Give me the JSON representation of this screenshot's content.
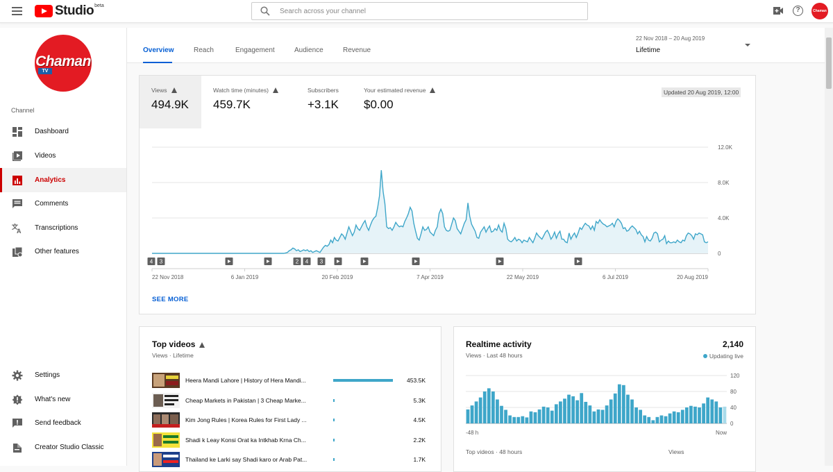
{
  "header": {
    "logo_text": "Studio",
    "logo_badge": "beta",
    "search_placeholder": "Search across your channel",
    "avatar_text": "Chaman"
  },
  "sidebar": {
    "channel_logo_text": "Chaman",
    "channel_logo_sub": "TV",
    "section_label": "Channel",
    "items": [
      {
        "label": "Dashboard",
        "icon": "dashboard-icon"
      },
      {
        "label": "Videos",
        "icon": "videos-icon"
      },
      {
        "label": "Analytics",
        "icon": "analytics-icon",
        "active": true
      },
      {
        "label": "Comments",
        "icon": "comments-icon"
      },
      {
        "label": "Transcriptions",
        "icon": "transcriptions-icon"
      },
      {
        "label": "Other features",
        "icon": "other-features-icon"
      }
    ],
    "bottom_items": [
      {
        "label": "Settings",
        "icon": "gear-icon"
      },
      {
        "label": "What's new",
        "icon": "whats-new-icon"
      },
      {
        "label": "Send feedback",
        "icon": "feedback-icon"
      },
      {
        "label": "Creator Studio Classic",
        "icon": "classic-icon"
      }
    ]
  },
  "tabs": [
    "Overview",
    "Reach",
    "Engagement",
    "Audience",
    "Revenue"
  ],
  "date_picker": {
    "range": "22 Nov 2018 – 20 Aug 2019",
    "value": "Lifetime"
  },
  "overview": {
    "metrics": [
      {
        "label": "Views",
        "value": "494.9K"
      },
      {
        "label": "Watch time (minutes)",
        "value": "459.7K"
      },
      {
        "label": "Subscribers",
        "value": "+3.1K"
      },
      {
        "label": "Your estimated revenue",
        "value": "$0.00"
      }
    ],
    "updated": "Updated 20 Aug 2019, 12:00",
    "see_more": "SEE MORE",
    "markers": [
      "4",
      "3",
      "2",
      "4",
      "3"
    ]
  },
  "chart_data": [
    {
      "type": "area",
      "title": "Views",
      "x_tick_labels": [
        "22 Nov 2018",
        "6 Jan 2019",
        "20 Feb 2019",
        "7 Apr 2019",
        "22 May 2019",
        "6 Jul 2019",
        "20 Aug 2019"
      ],
      "y_tick_labels": [
        "0",
        "4.0K",
        "8.0K",
        "12.0K"
      ],
      "ylim": [
        0,
        12000
      ],
      "series": [
        {
          "name": "Views",
          "values": [
            0,
            0,
            0,
            0,
            0,
            0,
            0,
            0,
            0,
            0,
            0,
            0,
            0,
            0,
            0,
            0,
            0,
            0,
            0,
            0,
            0,
            0,
            0,
            0,
            0,
            0,
            0,
            0,
            0,
            0,
            0,
            0,
            0,
            0,
            0,
            0,
            0,
            0,
            0,
            0,
            0,
            0,
            0,
            0,
            0,
            0,
            0,
            0,
            0,
            0,
            0,
            0,
            0,
            0,
            0,
            0,
            0,
            0,
            0,
            0,
            0,
            0,
            0,
            0,
            0,
            0,
            0,
            0,
            0,
            0,
            0,
            0,
            0,
            0,
            50,
            100,
            300,
            400,
            600,
            500,
            300,
            400,
            200,
            300,
            400,
            300,
            400,
            200,
            300,
            100,
            200,
            300,
            200,
            100,
            400,
            700,
            900,
            800,
            1000,
            1500,
            1200,
            1800,
            1500,
            1400,
            1800,
            2200,
            2000,
            1600,
            2300,
            3000,
            2500,
            2000,
            2400,
            3200,
            2800,
            2600,
            3000,
            3400,
            3700,
            3000,
            2600,
            3200,
            3700,
            4000,
            4200,
            5200,
            6500,
            9400,
            7000,
            5600,
            3000,
            2800,
            2900,
            2600,
            3000,
            3500,
            3200,
            3000,
            3100,
            3000,
            3600,
            4000,
            4500,
            5200,
            4800,
            3400,
            2500,
            1700,
            1500,
            2200,
            3000,
            2600,
            2700,
            3000,
            2400,
            2200,
            2000,
            2600,
            3000,
            4500,
            5000,
            4500,
            3000,
            2600,
            2500,
            2600,
            3300,
            4000,
            3700,
            2800,
            2500,
            2200,
            2800,
            3400,
            3800,
            5700,
            4200,
            3300,
            2900,
            2500,
            1800,
            1700,
            2400,
            2700,
            3000,
            2400,
            2800,
            3100,
            2400,
            2500,
            2800,
            2600,
            3200,
            2600,
            2400,
            3400,
            2800,
            1600,
            1400,
            1300,
            1500,
            1800,
            1400,
            1600,
            1500,
            1200,
            1500,
            1400,
            1300,
            1800,
            1500,
            1200,
            1700,
            2300,
            2000,
            1800,
            1600,
            2000,
            2400,
            2600,
            2200,
            1600,
            1900,
            2400,
            1700,
            2200,
            2500,
            1600,
            1600,
            1300,
            1200,
            2300,
            1600,
            2000,
            2300,
            1800,
            2300,
            2900,
            2700,
            3100,
            3400,
            3200,
            3100,
            2700,
            3100,
            2600,
            3600,
            3400,
            3800,
            3500,
            3300,
            3200,
            3000,
            3100,
            3200,
            3400,
            3000,
            3600,
            3900,
            3700,
            3400,
            2800,
            2900,
            2500,
            2600,
            2900,
            3100,
            2900,
            2700,
            2200,
            2500,
            2100,
            1900,
            1300,
            1900,
            1500,
            1400,
            1700,
            2300,
            2400,
            2200,
            1300,
            1500,
            1600,
            2000,
            1100,
            1400,
            1200,
            1200,
            1300,
            1200,
            1500,
            1300,
            1200,
            1500,
            1400,
            2000,
            2300,
            2200,
            2000,
            1600,
            2200,
            2100,
            2300,
            2200,
            2100,
            1300,
            1200,
            1300
          ]
        }
      ]
    },
    {
      "type": "bar",
      "title": "Realtime activity",
      "x_tick_labels": [
        "-48 h",
        "Now"
      ],
      "y_tick_labels": [
        "0",
        "40",
        "80",
        "120"
      ],
      "ylim": [
        0,
        120
      ],
      "series": [
        {
          "name": "Views",
          "values": [
            35,
            45,
            55,
            65,
            80,
            88,
            80,
            60,
            44,
            34,
            20,
            16,
            16,
            18,
            15,
            30,
            28,
            35,
            42,
            40,
            32,
            48,
            55,
            62,
            72,
            68,
            58,
            76,
            54,
            45,
            30,
            35,
            34,
            45,
            60,
            75,
            98,
            96,
            72,
            60,
            40,
            34,
            20,
            16,
            8,
            16,
            20,
            18,
            25,
            30,
            28,
            34,
            40,
            44,
            42,
            40,
            50,
            65,
            60,
            55,
            40,
            42
          ]
        }
      ]
    }
  ],
  "top_videos": {
    "title": "Top videos",
    "subtitle": "Views · Lifetime",
    "videos": [
      {
        "title": "Heera Mandi Lahore | History of Hera Mandi...",
        "views": "453.5K",
        "share": 1.0
      },
      {
        "title": "Cheap Markets in Pakistan | 3 Cheap Marke...",
        "views": "5.3K",
        "share": 0.012
      },
      {
        "title": "Kim Jong Rules | Korea Rules for First Lady ...",
        "views": "4.5K",
        "share": 0.01
      },
      {
        "title": "Shadi k Leay Konsi Orat ka Intkhab Krna Ch...",
        "views": "2.2K",
        "share": 0.005
      },
      {
        "title": "Thailand ke Larki say Shadi karo or Arab Pat...",
        "views": "1.7K",
        "share": 0.004
      }
    ]
  },
  "realtime": {
    "title": "Realtime activity",
    "subtitle": "Views · Last 48 hours",
    "count": "2,140",
    "live_label": "Updating live",
    "footer_left": "Top videos · 48 hours",
    "footer_right": "Views"
  }
}
